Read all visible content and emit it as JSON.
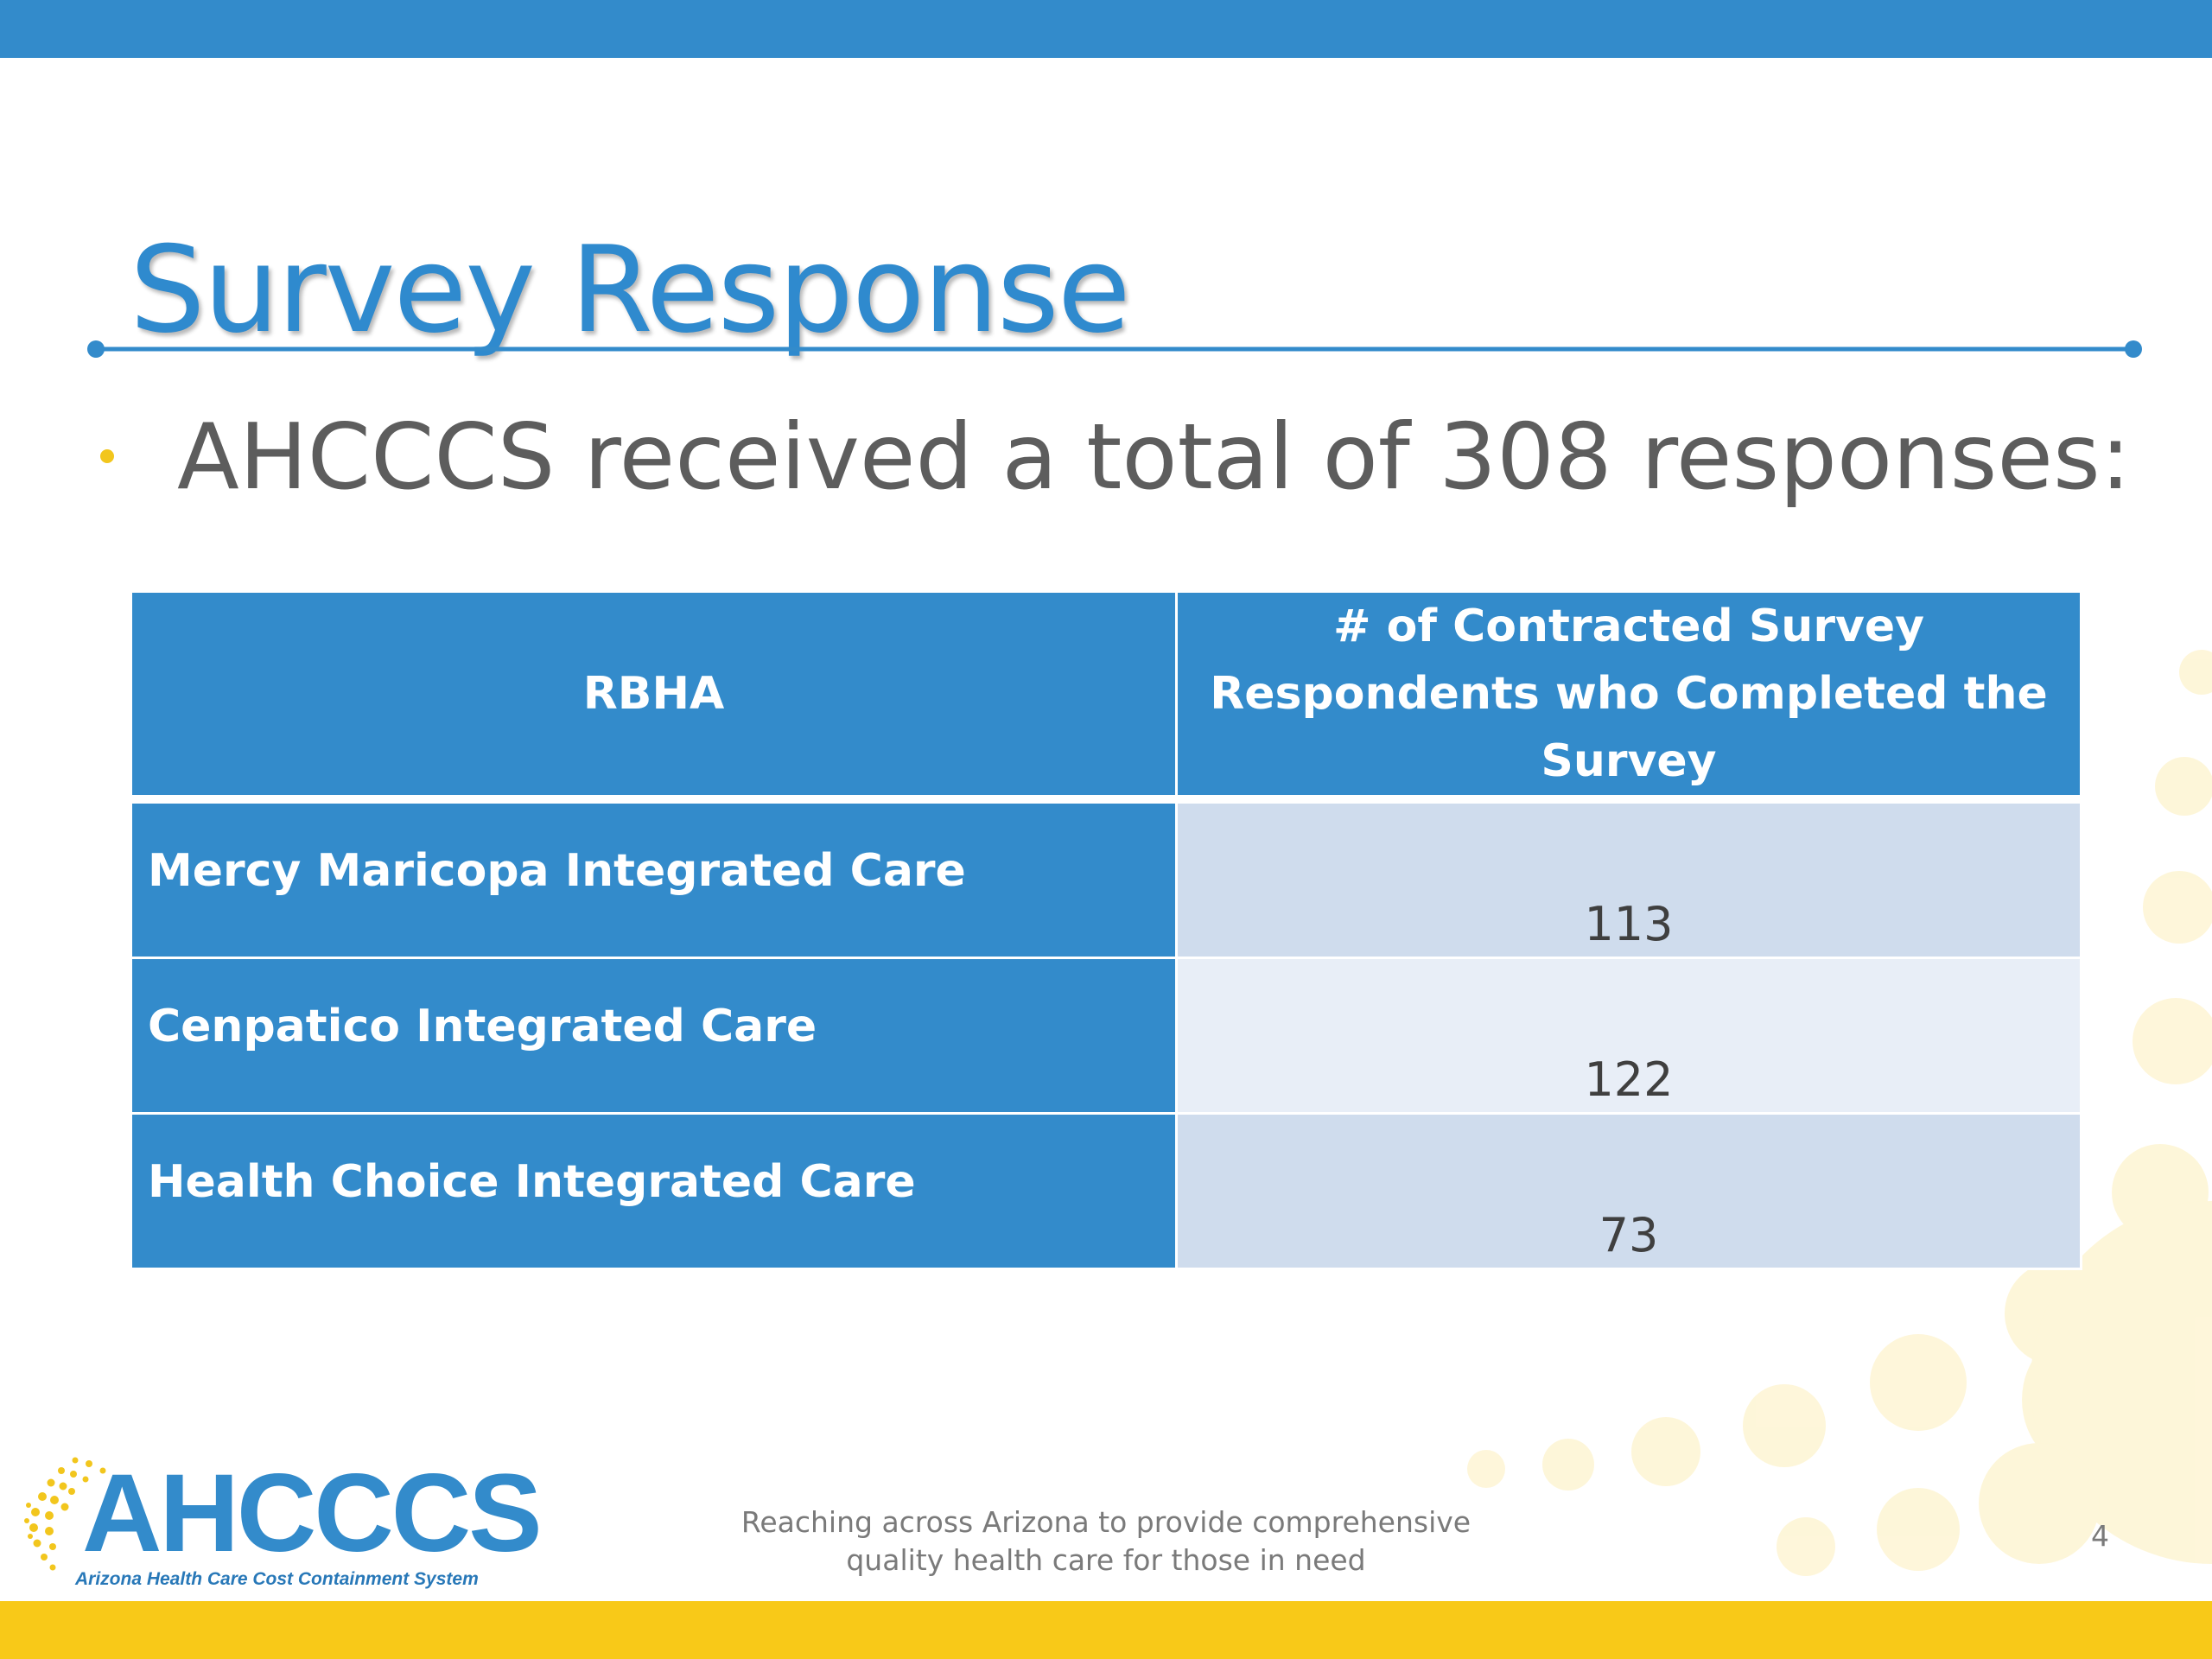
{
  "colors": {
    "accent_blue": "#338bcb",
    "accent_yellow": "#f8c918",
    "row_alt_1": "#cfdced",
    "row_alt_2": "#e8eef7"
  },
  "slide": {
    "title": "Survey Response",
    "bullet": "AHCCCS received a total of 308 responses:",
    "table": {
      "headers": [
        "RBHA",
        "# of Contracted Survey Respondents who Completed the Survey"
      ],
      "rows": [
        {
          "rbha": "Mercy Maricopa Integrated Care",
          "count": "113"
        },
        {
          "rbha": "Cenpatico Integrated Care",
          "count": "122"
        },
        {
          "rbha": "Health Choice Integrated Care",
          "count": "73"
        }
      ]
    }
  },
  "footer": {
    "logo_text": "AHCCCS",
    "logo_subtext": "Arizona Health Care Cost Containment System",
    "tagline_line1": "Reaching across Arizona to provide comprehensive",
    "tagline_line2": "quality health care for those in need",
    "page_number": "4"
  }
}
